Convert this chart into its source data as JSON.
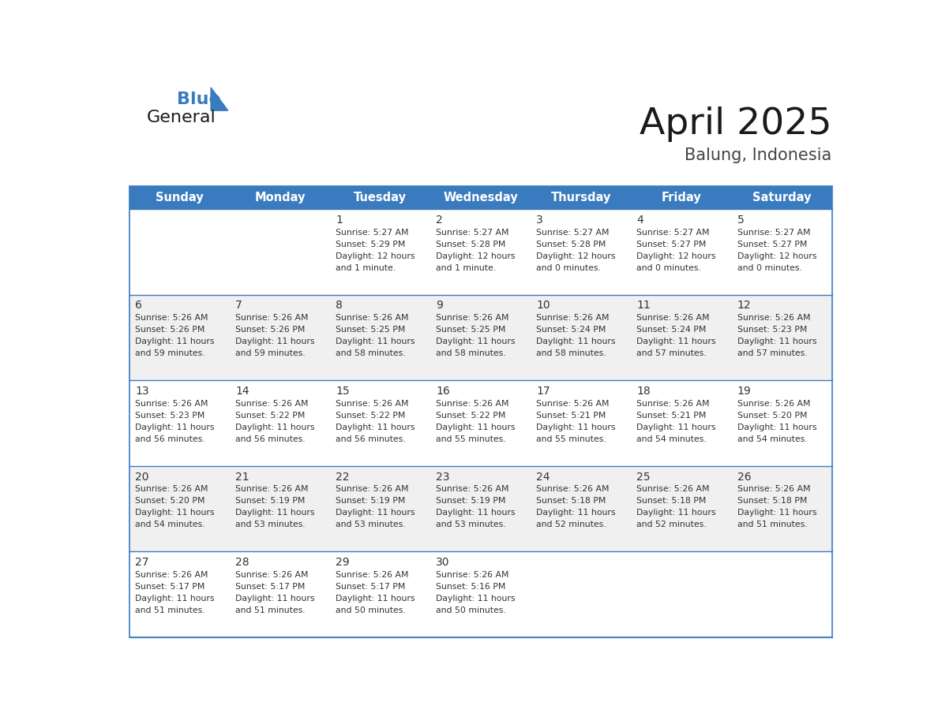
{
  "title": "April 2025",
  "subtitle": "Balung, Indonesia",
  "header_bg_color": "#3a7bbf",
  "header_text_color": "#ffffff",
  "cell_bg_white": "#ffffff",
  "cell_bg_gray": "#f0f0f0",
  "text_color": "#333333",
  "days_of_week": [
    "Sunday",
    "Monday",
    "Tuesday",
    "Wednesday",
    "Thursday",
    "Friday",
    "Saturday"
  ],
  "weeks": [
    [
      {
        "day": "",
        "sunrise": "",
        "sunset": "",
        "daylight_line1": "",
        "daylight_line2": ""
      },
      {
        "day": "",
        "sunrise": "",
        "sunset": "",
        "daylight_line1": "",
        "daylight_line2": ""
      },
      {
        "day": "1",
        "sunrise": "5:27 AM",
        "sunset": "5:29 PM",
        "daylight_line1": "Daylight: 12 hours",
        "daylight_line2": "and 1 minute."
      },
      {
        "day": "2",
        "sunrise": "5:27 AM",
        "sunset": "5:28 PM",
        "daylight_line1": "Daylight: 12 hours",
        "daylight_line2": "and 1 minute."
      },
      {
        "day": "3",
        "sunrise": "5:27 AM",
        "sunset": "5:28 PM",
        "daylight_line1": "Daylight: 12 hours",
        "daylight_line2": "and 0 minutes."
      },
      {
        "day": "4",
        "sunrise": "5:27 AM",
        "sunset": "5:27 PM",
        "daylight_line1": "Daylight: 12 hours",
        "daylight_line2": "and 0 minutes."
      },
      {
        "day": "5",
        "sunrise": "5:27 AM",
        "sunset": "5:27 PM",
        "daylight_line1": "Daylight: 12 hours",
        "daylight_line2": "and 0 minutes."
      }
    ],
    [
      {
        "day": "6",
        "sunrise": "5:26 AM",
        "sunset": "5:26 PM",
        "daylight_line1": "Daylight: 11 hours",
        "daylight_line2": "and 59 minutes."
      },
      {
        "day": "7",
        "sunrise": "5:26 AM",
        "sunset": "5:26 PM",
        "daylight_line1": "Daylight: 11 hours",
        "daylight_line2": "and 59 minutes."
      },
      {
        "day": "8",
        "sunrise": "5:26 AM",
        "sunset": "5:25 PM",
        "daylight_line1": "Daylight: 11 hours",
        "daylight_line2": "and 58 minutes."
      },
      {
        "day": "9",
        "sunrise": "5:26 AM",
        "sunset": "5:25 PM",
        "daylight_line1": "Daylight: 11 hours",
        "daylight_line2": "and 58 minutes."
      },
      {
        "day": "10",
        "sunrise": "5:26 AM",
        "sunset": "5:24 PM",
        "daylight_line1": "Daylight: 11 hours",
        "daylight_line2": "and 58 minutes."
      },
      {
        "day": "11",
        "sunrise": "5:26 AM",
        "sunset": "5:24 PM",
        "daylight_line1": "Daylight: 11 hours",
        "daylight_line2": "and 57 minutes."
      },
      {
        "day": "12",
        "sunrise": "5:26 AM",
        "sunset": "5:23 PM",
        "daylight_line1": "Daylight: 11 hours",
        "daylight_line2": "and 57 minutes."
      }
    ],
    [
      {
        "day": "13",
        "sunrise": "5:26 AM",
        "sunset": "5:23 PM",
        "daylight_line1": "Daylight: 11 hours",
        "daylight_line2": "and 56 minutes."
      },
      {
        "day": "14",
        "sunrise": "5:26 AM",
        "sunset": "5:22 PM",
        "daylight_line1": "Daylight: 11 hours",
        "daylight_line2": "and 56 minutes."
      },
      {
        "day": "15",
        "sunrise": "5:26 AM",
        "sunset": "5:22 PM",
        "daylight_line1": "Daylight: 11 hours",
        "daylight_line2": "and 56 minutes."
      },
      {
        "day": "16",
        "sunrise": "5:26 AM",
        "sunset": "5:22 PM",
        "daylight_line1": "Daylight: 11 hours",
        "daylight_line2": "and 55 minutes."
      },
      {
        "day": "17",
        "sunrise": "5:26 AM",
        "sunset": "5:21 PM",
        "daylight_line1": "Daylight: 11 hours",
        "daylight_line2": "and 55 minutes."
      },
      {
        "day": "18",
        "sunrise": "5:26 AM",
        "sunset": "5:21 PM",
        "daylight_line1": "Daylight: 11 hours",
        "daylight_line2": "and 54 minutes."
      },
      {
        "day": "19",
        "sunrise": "5:26 AM",
        "sunset": "5:20 PM",
        "daylight_line1": "Daylight: 11 hours",
        "daylight_line2": "and 54 minutes."
      }
    ],
    [
      {
        "day": "20",
        "sunrise": "5:26 AM",
        "sunset": "5:20 PM",
        "daylight_line1": "Daylight: 11 hours",
        "daylight_line2": "and 54 minutes."
      },
      {
        "day": "21",
        "sunrise": "5:26 AM",
        "sunset": "5:19 PM",
        "daylight_line1": "Daylight: 11 hours",
        "daylight_line2": "and 53 minutes."
      },
      {
        "day": "22",
        "sunrise": "5:26 AM",
        "sunset": "5:19 PM",
        "daylight_line1": "Daylight: 11 hours",
        "daylight_line2": "and 53 minutes."
      },
      {
        "day": "23",
        "sunrise": "5:26 AM",
        "sunset": "5:19 PM",
        "daylight_line1": "Daylight: 11 hours",
        "daylight_line2": "and 53 minutes."
      },
      {
        "day": "24",
        "sunrise": "5:26 AM",
        "sunset": "5:18 PM",
        "daylight_line1": "Daylight: 11 hours",
        "daylight_line2": "and 52 minutes."
      },
      {
        "day": "25",
        "sunrise": "5:26 AM",
        "sunset": "5:18 PM",
        "daylight_line1": "Daylight: 11 hours",
        "daylight_line2": "and 52 minutes."
      },
      {
        "day": "26",
        "sunrise": "5:26 AM",
        "sunset": "5:18 PM",
        "daylight_line1": "Daylight: 11 hours",
        "daylight_line2": "and 51 minutes."
      }
    ],
    [
      {
        "day": "27",
        "sunrise": "5:26 AM",
        "sunset": "5:17 PM",
        "daylight_line1": "Daylight: 11 hours",
        "daylight_line2": "and 51 minutes."
      },
      {
        "day": "28",
        "sunrise": "5:26 AM",
        "sunset": "5:17 PM",
        "daylight_line1": "Daylight: 11 hours",
        "daylight_line2": "and 51 minutes."
      },
      {
        "day": "29",
        "sunrise": "5:26 AM",
        "sunset": "5:17 PM",
        "daylight_line1": "Daylight: 11 hours",
        "daylight_line2": "and 50 minutes."
      },
      {
        "day": "30",
        "sunrise": "5:26 AM",
        "sunset": "5:16 PM",
        "daylight_line1": "Daylight: 11 hours",
        "daylight_line2": "and 50 minutes."
      },
      {
        "day": "",
        "sunrise": "",
        "sunset": "",
        "daylight_line1": "",
        "daylight_line2": ""
      },
      {
        "day": "",
        "sunrise": "",
        "sunset": "",
        "daylight_line1": "",
        "daylight_line2": ""
      },
      {
        "day": "",
        "sunrise": "",
        "sunset": "",
        "daylight_line1": "",
        "daylight_line2": ""
      }
    ]
  ],
  "logo_color_general": "#1a1a1a",
  "logo_color_blue": "#3a7bbf",
  "logo_triangle_color": "#3a7bbf",
  "border_color": "#3a7bbf",
  "title_color": "#1a1a1a",
  "subtitle_color": "#444444"
}
